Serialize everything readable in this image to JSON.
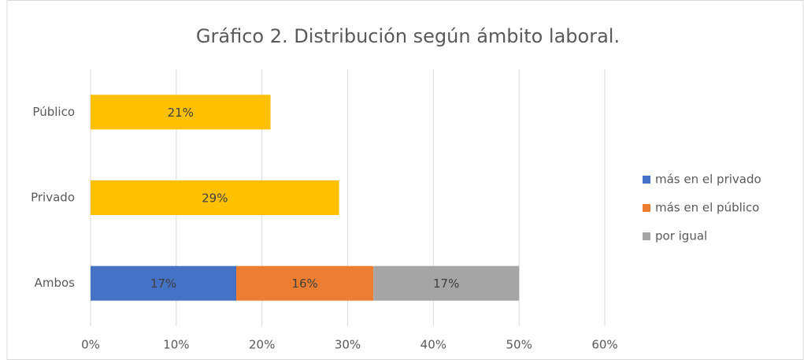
{
  "chart_data": {
    "type": "stacked-barh",
    "title": "Gráfico 2. Distribución según ámbito laboral.",
    "categories": [
      "Público",
      "Privado",
      "Ambos"
    ],
    "series": [
      {
        "color": "#ffc000",
        "values": [
          21,
          29,
          null
        ],
        "value_labels": [
          "21%",
          "29%",
          null
        ]
      },
      {
        "name": "más en el privado",
        "color": "#4472c4",
        "values": [
          null,
          null,
          17
        ],
        "value_labels": [
          null,
          null,
          "17%"
        ]
      },
      {
        "name": "más en el público",
        "color": "#ed7d31",
        "values": [
          null,
          null,
          16
        ],
        "value_labels": [
          null,
          null,
          "16%"
        ]
      },
      {
        "name": "por igual",
        "color": "#a5a5a5",
        "values": [
          null,
          null,
          17
        ],
        "value_labels": [
          null,
          null,
          "17%"
        ]
      }
    ],
    "xlim": [
      0,
      60
    ],
    "xticks": [
      {
        "value": 0,
        "label": "0%"
      },
      {
        "value": 10,
        "label": "10%"
      },
      {
        "value": 20,
        "label": "20%"
      },
      {
        "value": 30,
        "label": "30%"
      },
      {
        "value": 40,
        "label": "40%"
      },
      {
        "value": 50,
        "label": "50%"
      },
      {
        "value": 60,
        "label": "60%"
      }
    ],
    "grid": true,
    "legend": "right"
  }
}
